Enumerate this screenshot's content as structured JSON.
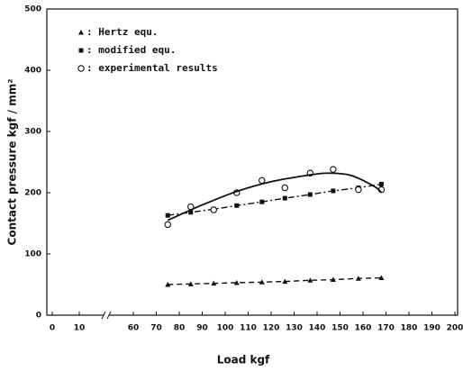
{
  "chart_data": {
    "type": "line",
    "xlabel": "Load   kgf",
    "ylabel": "Contact pressure kgf / mm²",
    "xlim": [
      0,
      200
    ],
    "ylim": [
      0,
      500
    ],
    "xticks": [
      0,
      10,
      60,
      70,
      80,
      90,
      100,
      110,
      120,
      130,
      140,
      150,
      160,
      170,
      180,
      190,
      200
    ],
    "yticks": [
      0,
      100,
      200,
      300,
      400,
      500
    ],
    "xbreak": [
      10,
      60
    ],
    "series": [
      {
        "name": ": Hertz equ.",
        "marker": "triangle",
        "line": "dashed",
        "color": "#111",
        "x": [
          75,
          85,
          95,
          105,
          116,
          126,
          137,
          147,
          158,
          168
        ],
        "values": [
          50,
          51,
          52,
          53,
          54,
          55,
          57,
          58,
          60,
          61
        ]
      },
      {
        "name": ": modified equ.",
        "marker": "square",
        "line": "dashdot",
        "color": "#111",
        "x": [
          75,
          85,
          95,
          105,
          116,
          126,
          137,
          147,
          158,
          168
        ],
        "values": [
          163,
          168,
          173,
          179,
          185,
          191,
          197,
          203,
          208,
          214
        ]
      },
      {
        "name": ": experimental results",
        "marker": "circle",
        "line": "none",
        "color": "#111",
        "x": [
          75,
          85,
          95,
          105,
          116,
          126,
          137,
          147,
          158,
          168
        ],
        "values": [
          148,
          177,
          172,
          200,
          220,
          208,
          232,
          238,
          205,
          205
        ]
      },
      {
        "marker": "none",
        "line": "solid",
        "color": "#111",
        "x": [
          75,
          90,
          105,
          120,
          135,
          145,
          155,
          165,
          168
        ],
        "values": [
          155,
          180,
          202,
          218,
          228,
          232,
          228,
          210,
          200
        ]
      }
    ]
  }
}
